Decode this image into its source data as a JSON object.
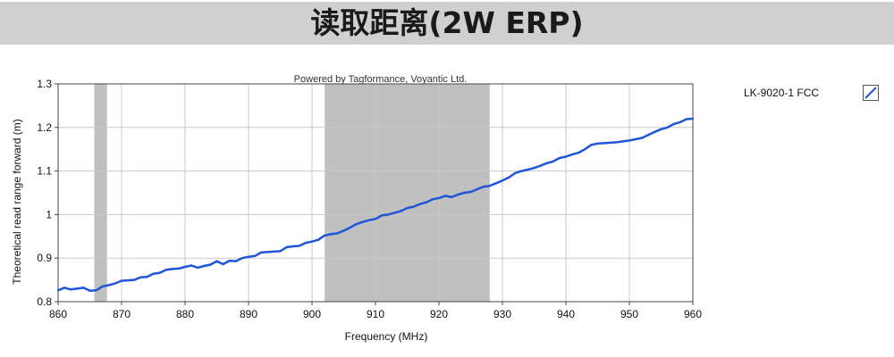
{
  "header": {
    "title": "读取距离(2W ERP)"
  },
  "chart_data": {
    "type": "line",
    "annotation": "Powered by Tagformance, Voyantic Ltd.",
    "xlabel": "Frequency (MHz)",
    "ylabel": "Theoretical read range forward (m)",
    "xlim": [
      860,
      960
    ],
    "ylim": [
      0.8,
      1.3
    ],
    "xticks": [
      860,
      870,
      880,
      890,
      900,
      910,
      920,
      930,
      940,
      950,
      960
    ],
    "yticks": [
      0.8,
      0.9,
      1,
      1.1,
      1.2,
      1.3
    ],
    "ytick_labels": [
      "0.8",
      "0.9",
      "1",
      "1.1",
      "1.2",
      "1.3"
    ],
    "grid": true,
    "legend_position": "right",
    "shaded_bands": [
      [
        865.7,
        867.7
      ],
      [
        902,
        928
      ]
    ],
    "colors": {
      "series": "#1f56d8",
      "band": "#c0c0c0",
      "grid": "#c8c8c8"
    },
    "series": [
      {
        "name": "LK-9020-1 FCC",
        "x": [
          860,
          861,
          862,
          863,
          864,
          865,
          866,
          867,
          868,
          869,
          870,
          871,
          872,
          873,
          874,
          875,
          876,
          877,
          878,
          879,
          880,
          881,
          882,
          883,
          884,
          885,
          886,
          887,
          888,
          889,
          890,
          891,
          892,
          893,
          894,
          895,
          896,
          897,
          898,
          899,
          900,
          901,
          902,
          903,
          904,
          905,
          906,
          907,
          908,
          909,
          910,
          911,
          912,
          913,
          914,
          915,
          916,
          917,
          918,
          919,
          920,
          921,
          922,
          923,
          924,
          925,
          926,
          927,
          928,
          929,
          930,
          931,
          932,
          933,
          934,
          935,
          936,
          937,
          938,
          939,
          940,
          941,
          942,
          943,
          944,
          945,
          946,
          947,
          948,
          949,
          950,
          951,
          952,
          953,
          954,
          955,
          956,
          957,
          958,
          959,
          960
        ],
        "y": [
          0.826,
          0.832,
          0.828,
          0.83,
          0.832,
          0.825,
          0.826,
          0.835,
          0.838,
          0.842,
          0.848,
          0.849,
          0.85,
          0.856,
          0.857,
          0.864,
          0.866,
          0.873,
          0.875,
          0.876,
          0.88,
          0.883,
          0.878,
          0.882,
          0.885,
          0.893,
          0.886,
          0.894,
          0.893,
          0.9,
          0.903,
          0.905,
          0.913,
          0.914,
          0.915,
          0.916,
          0.925,
          0.927,
          0.928,
          0.935,
          0.938,
          0.942,
          0.952,
          0.955,
          0.957,
          0.963,
          0.97,
          0.978,
          0.983,
          0.987,
          0.99,
          0.998,
          1.0,
          1.004,
          1.008,
          1.015,
          1.018,
          1.024,
          1.028,
          1.035,
          1.038,
          1.043,
          1.04,
          1.046,
          1.05,
          1.052,
          1.058,
          1.064,
          1.066,
          1.072,
          1.078,
          1.085,
          1.095,
          1.1,
          1.103,
          1.107,
          1.112,
          1.118,
          1.122,
          1.13,
          1.133,
          1.138,
          1.142,
          1.15,
          1.16,
          1.163,
          1.164,
          1.165,
          1.166,
          1.168,
          1.17,
          1.173,
          1.176,
          1.183,
          1.19,
          1.196,
          1.2,
          1.208,
          1.212,
          1.219,
          1.22
        ]
      }
    ]
  }
}
